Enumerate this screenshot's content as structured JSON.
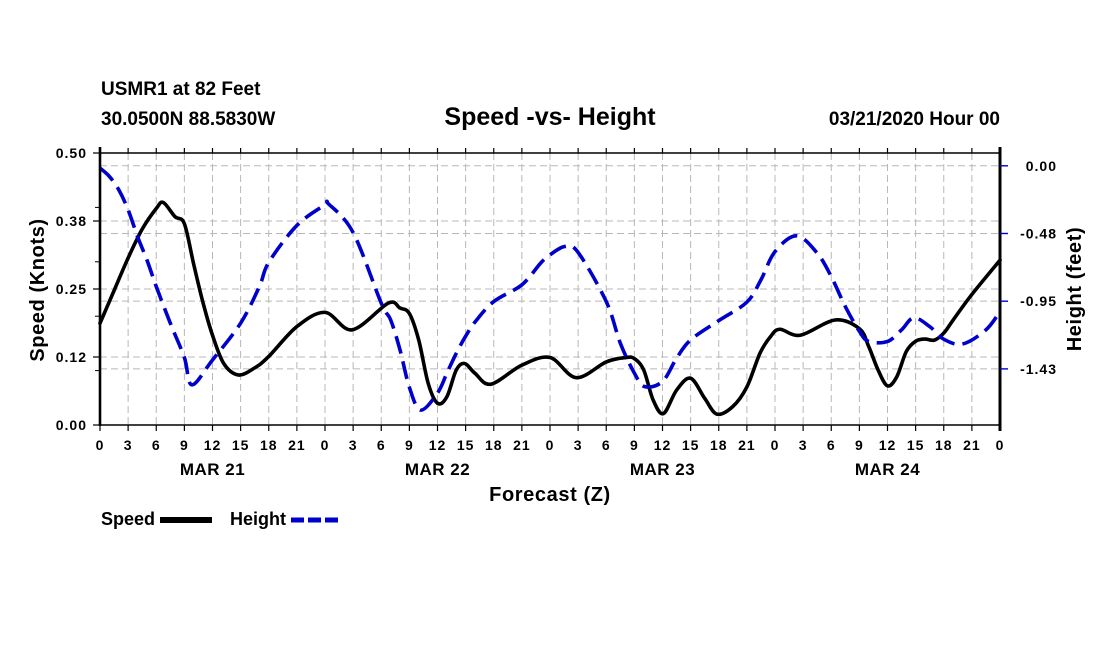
{
  "header": {
    "station": "USMR1 at 82 Feet",
    "coords": "30.0500N 88.5830W",
    "title": "Speed -vs- Height",
    "run": "03/21/2020 Hour 00"
  },
  "legend": {
    "items": [
      {
        "label": "Speed",
        "color": "#000000",
        "style": "solid"
      },
      {
        "label": "Height",
        "color": "#0000cc",
        "style": "dashed"
      }
    ]
  },
  "chart_data": {
    "type": "line",
    "title": "Speed -vs- Height",
    "xlabel": "Forecast (Z)",
    "ylabel": "Speed (Knots)",
    "y2label": "Height (feet)",
    "x_range": [
      0,
      96
    ],
    "x_ticks": {
      "hours": [
        0,
        3,
        6,
        9,
        12,
        15,
        18,
        21,
        24,
        27,
        30,
        33,
        36,
        39,
        42,
        45,
        48,
        51,
        54,
        57,
        60,
        63,
        66,
        69,
        72,
        75,
        78,
        81,
        84,
        87,
        90,
        93,
        96
      ],
      "labels": [
        "0",
        "3",
        "6",
        "9",
        "12",
        "15",
        "18",
        "21",
        "0",
        "3",
        "6",
        "9",
        "12",
        "15",
        "18",
        "21",
        "0",
        "3",
        "6",
        "9",
        "12",
        "15",
        "18",
        "21",
        "0",
        "3",
        "6",
        "9",
        "12",
        "15",
        "18",
        "21",
        "0"
      ]
    },
    "day_labels": [
      {
        "label": "MAR 21",
        "hour": 12
      },
      {
        "label": "MAR 22",
        "hour": 36
      },
      {
        "label": "MAR 23",
        "hour": 60
      },
      {
        "label": "MAR 24",
        "hour": 84
      }
    ],
    "ylim": [
      0,
      0.5
    ],
    "y_ticks": {
      "values": [
        0,
        0.125,
        0.25,
        0.375,
        0.5
      ],
      "labels": [
        "0.00",
        "0.12",
        "0.25",
        "0.38",
        "0.50"
      ]
    },
    "y_minor_ticks": [
      0.1,
      0.2,
      0.3,
      0.4
    ],
    "y2lim": [
      -1.825,
      0.09
    ],
    "y2_ticks": {
      "values": [
        0,
        -0.4767,
        -0.9533,
        -1.43
      ],
      "labels": [
        "0.00",
        "-0.48",
        "-0.95",
        "-1.43"
      ]
    },
    "grid": true,
    "legend_position": "bottom-left",
    "series": [
      {
        "name": "Speed",
        "axis": "left",
        "color": "#000000",
        "style": "solid",
        "x": [
          0,
          1.5,
          3,
          4.5,
          6,
          6.75,
          8,
          9,
          10,
          11,
          12,
          13.2,
          14.75,
          16.5,
          18,
          21,
          24,
          26.9,
          30.75,
          32,
          33,
          34,
          35,
          36,
          37,
          38,
          38.9,
          40,
          41.7,
          45,
          48,
          50.8,
          54,
          56.1,
          57,
          58,
          59,
          60.1,
          61.5,
          63,
          64.5,
          65.8,
          67.5,
          69,
          70.4,
          71.5,
          72.5,
          74.7,
          78.4,
          81,
          82,
          83,
          84,
          85,
          86,
          87,
          88,
          89,
          90,
          91,
          93,
          96
        ],
        "values": [
          0.187,
          0.247,
          0.307,
          0.36,
          0.398,
          0.409,
          0.383,
          0.37,
          0.295,
          0.224,
          0.165,
          0.113,
          0.092,
          0.105,
          0.126,
          0.181,
          0.207,
          0.175,
          0.224,
          0.215,
          0.205,
          0.156,
          0.077,
          0.04,
          0.052,
          0.101,
          0.113,
          0.095,
          0.075,
          0.11,
          0.124,
          0.087,
          0.116,
          0.124,
          0.122,
          0.101,
          0.046,
          0.021,
          0.064,
          0.086,
          0.049,
          0.02,
          0.034,
          0.07,
          0.132,
          0.162,
          0.176,
          0.165,
          0.193,
          0.177,
          0.144,
          0.101,
          0.072,
          0.089,
          0.135,
          0.154,
          0.158,
          0.156,
          0.169,
          0.193,
          0.24,
          0.303
        ]
      },
      {
        "name": "Height",
        "axis": "right",
        "color": "#0000cc",
        "style": "dashed",
        "x": [
          0,
          1,
          2,
          3,
          4,
          5,
          6,
          7.5,
          9,
          9.8,
          12,
          15,
          17,
          18,
          21,
          24,
          24.4,
          27,
          30,
          31,
          32,
          33,
          34.2,
          36,
          37,
          38,
          39,
          40,
          42,
          45,
          47,
          48,
          49.6,
          51,
          54,
          55.5,
          57,
          58.1,
          60,
          61.5,
          63,
          66,
          69,
          70.5,
          72,
          74.3,
          76.5,
          78,
          79.5,
          81,
          82,
          84,
          85.5,
          86.8,
          88.5,
          90,
          92,
          94.5,
          96
        ],
        "values": [
          -0.016,
          -0.075,
          -0.169,
          -0.31,
          -0.498,
          -0.662,
          -0.85,
          -1.108,
          -1.35,
          -1.542,
          -1.367,
          -1.108,
          -0.85,
          -0.68,
          -0.42,
          -0.275,
          -0.27,
          -0.47,
          -0.967,
          -1.085,
          -1.296,
          -1.56,
          -1.72,
          -1.6,
          -1.46,
          -1.32,
          -1.2,
          -1.1,
          -0.956,
          -0.838,
          -0.685,
          -0.627,
          -0.568,
          -0.61,
          -0.956,
          -1.249,
          -1.46,
          -1.555,
          -1.519,
          -1.355,
          -1.226,
          -1.09,
          -0.96,
          -0.803,
          -0.604,
          -0.493,
          -0.615,
          -0.78,
          -0.991,
          -1.165,
          -1.237,
          -1.237,
          -1.155,
          -1.07,
          -1.132,
          -1.221,
          -1.255,
          -1.155,
          -1.026
        ]
      }
    ]
  }
}
